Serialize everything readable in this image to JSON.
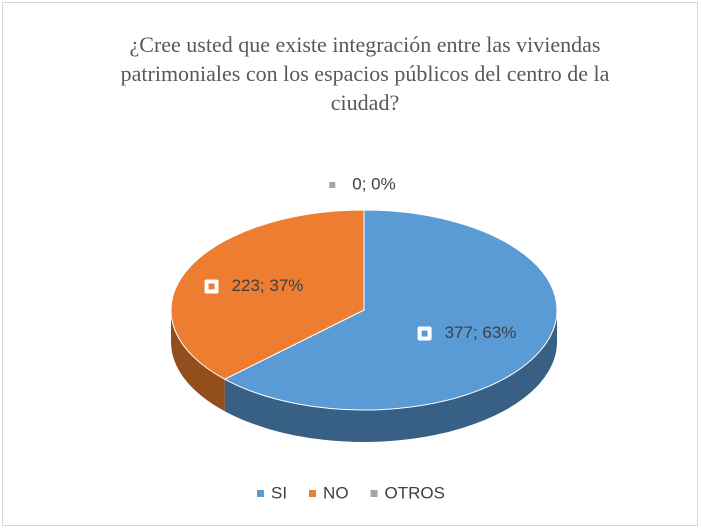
{
  "chart_data": {
    "type": "pie3d",
    "title": "¿Cree usted que existe integración entre las viviendas patrimoniales con los espacios públicos del centro de la ciudad?",
    "categories": [
      "SI",
      "NO",
      "OTROS"
    ],
    "values": [
      377,
      223,
      0
    ],
    "value_labels": [
      "377; 63%",
      "223; 37%",
      "0; 0%"
    ],
    "colors": [
      "#5b9bd5",
      "#ed7d31",
      "#a5a5a5"
    ],
    "legend": "bottom"
  }
}
